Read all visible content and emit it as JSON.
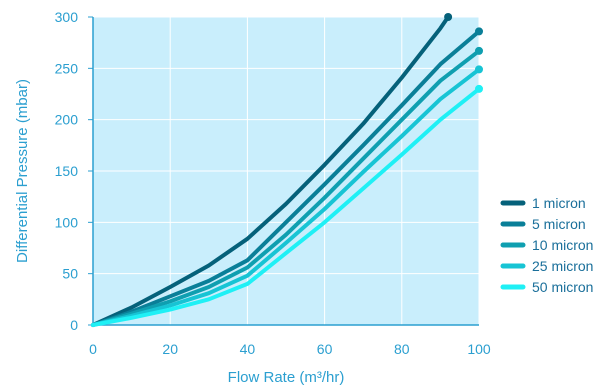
{
  "chart_data": {
    "type": "line",
    "xlabel": "Flow Rate  (m³/hr)",
    "ylabel": "Differential Pressure  (mbar)",
    "xlim": [
      0,
      100
    ],
    "ylim": [
      0,
      300
    ],
    "x_ticks": [
      0,
      20,
      40,
      60,
      80,
      100
    ],
    "y_ticks": [
      0,
      50,
      100,
      150,
      200,
      250,
      300
    ],
    "grid": true,
    "legend_position": "right",
    "plot_background": "#c9eefc",
    "axis_color": "#2b9fd0",
    "series": [
      {
        "name": "1 micron",
        "color": "#05617a",
        "points": [
          [
            0,
            0
          ],
          [
            10,
            17
          ],
          [
            20,
            37
          ],
          [
            30,
            58
          ],
          [
            40,
            84
          ],
          [
            50,
            118
          ],
          [
            60,
            156
          ],
          [
            70,
            196
          ],
          [
            80,
            241
          ],
          [
            90,
            289
          ],
          [
            92,
            300
          ]
        ]
      },
      {
        "name": "5 micron",
        "color": "#0a7f98",
        "points": [
          [
            0,
            0
          ],
          [
            10,
            13
          ],
          [
            20,
            28
          ],
          [
            30,
            43
          ],
          [
            40,
            63
          ],
          [
            50,
            100
          ],
          [
            60,
            137
          ],
          [
            70,
            175
          ],
          [
            80,
            214
          ],
          [
            90,
            254
          ],
          [
            100,
            286
          ]
        ]
      },
      {
        "name": "10 micron",
        "color": "#0f9fb0",
        "points": [
          [
            0,
            0
          ],
          [
            10,
            11
          ],
          [
            20,
            23
          ],
          [
            30,
            37
          ],
          [
            40,
            56
          ],
          [
            50,
            88
          ],
          [
            60,
            124
          ],
          [
            70,
            162
          ],
          [
            80,
            200
          ],
          [
            90,
            238
          ],
          [
            100,
            267
          ]
        ]
      },
      {
        "name": "25 micron",
        "color": "#17c4d4",
        "points": [
          [
            0,
            0
          ],
          [
            10,
            9
          ],
          [
            20,
            19
          ],
          [
            30,
            31
          ],
          [
            40,
            48
          ],
          [
            50,
            80
          ],
          [
            60,
            113
          ],
          [
            70,
            149
          ],
          [
            80,
            184
          ],
          [
            90,
            220
          ],
          [
            100,
            249
          ]
        ]
      },
      {
        "name": "50 micron",
        "color": "#1ff0f5",
        "points": [
          [
            0,
            0
          ],
          [
            10,
            7
          ],
          [
            20,
            15
          ],
          [
            30,
            25
          ],
          [
            40,
            40
          ],
          [
            50,
            70
          ],
          [
            60,
            100
          ],
          [
            70,
            133
          ],
          [
            80,
            166
          ],
          [
            90,
            200
          ],
          [
            100,
            230
          ]
        ]
      }
    ]
  }
}
